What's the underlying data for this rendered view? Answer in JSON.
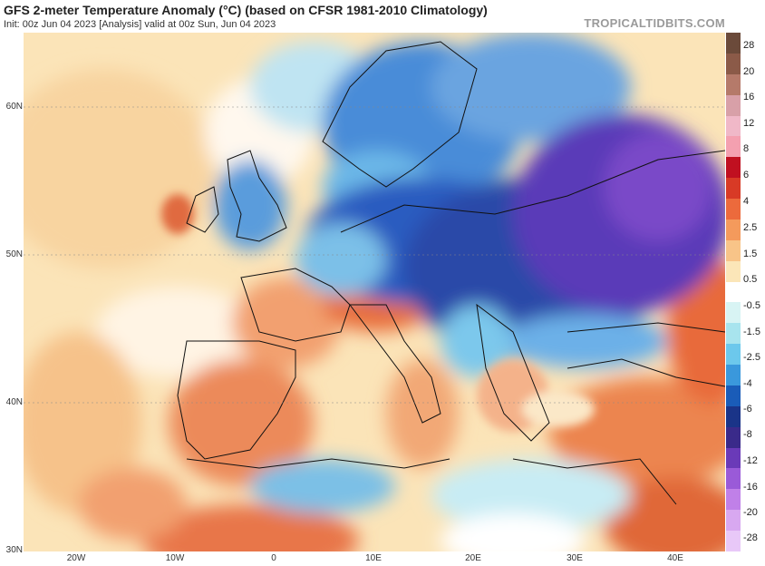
{
  "header": {
    "title": "GFS 2-meter Temperature Anomaly (°C) (based on CFSR 1981-2010 Climatology)",
    "subtitle": "Init: 00z Jun 04 2023   [Analysis]   valid at 00z Sun, Jun 04 2023",
    "watermark": "TROPICALTIDBITS.COM"
  },
  "map": {
    "region": "Europe",
    "lat_labels": [
      "60N",
      "50N",
      "40N",
      "30N"
    ],
    "lon_labels": [
      "20W",
      "10W",
      "0",
      "10E",
      "20E",
      "30E",
      "40E"
    ]
  },
  "colorbar": {
    "labels": [
      "28",
      "20",
      "16",
      "12",
      "8",
      "6",
      "4",
      "2.5",
      "1.5",
      "0.5",
      "-0.5",
      "-1.5",
      "-2.5",
      "-4",
      "-6",
      "-8",
      "-12",
      "-16",
      "-20",
      "-28"
    ],
    "colors": [
      "#6b4a3a",
      "#8b5a48",
      "#b57a6a",
      "#d8a0a8",
      "#f0b8c8",
      "#f4a0b0",
      "#c01020",
      "#d83a26",
      "#ec6a3c",
      "#f49a5c",
      "#f8c488",
      "#fbe6b8",
      "#ffffff",
      "#d8f4f4",
      "#a8e4ee",
      "#6cc8ec",
      "#3a98dc",
      "#1a5cb8",
      "#1a3488",
      "#3a2a8a",
      "#6a3ab8",
      "#9a5ad8",
      "#c080e8",
      "#d8a8f0",
      "#e8c8f8"
    ]
  }
}
